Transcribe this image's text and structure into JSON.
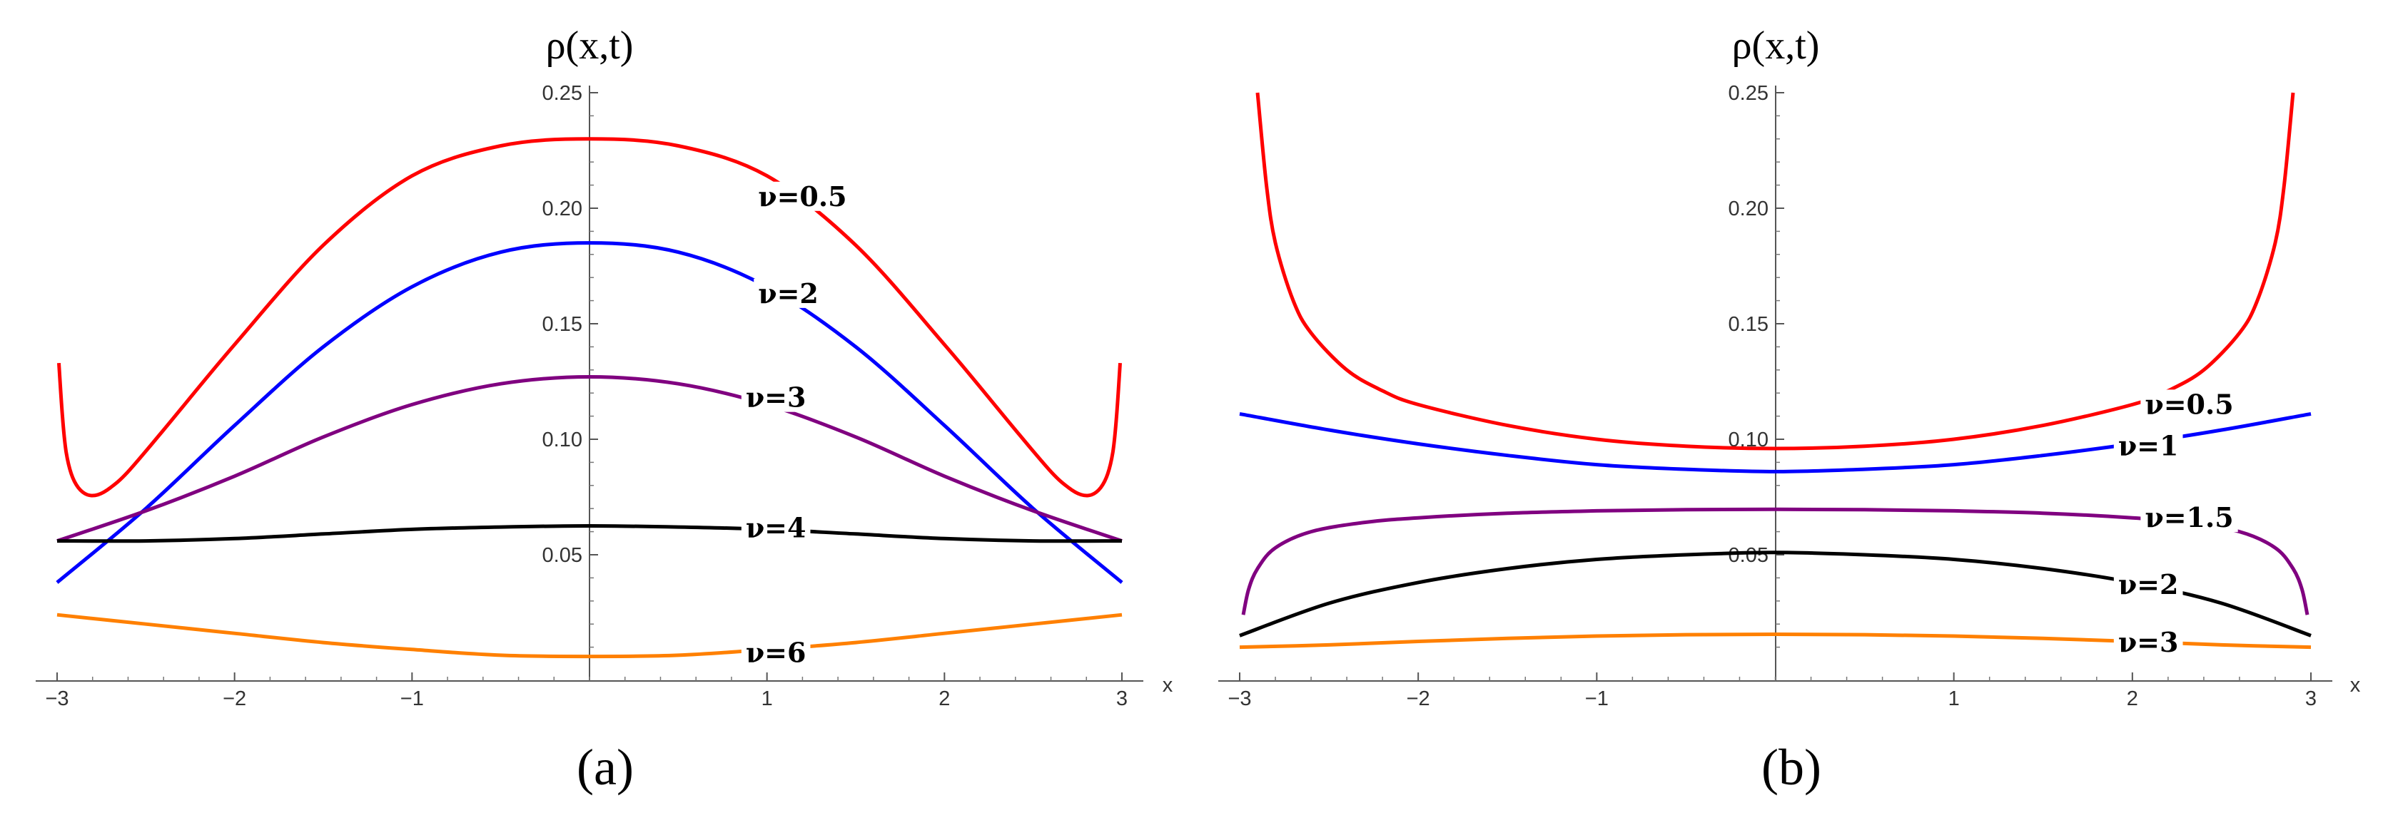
{
  "chart_data": [
    {
      "type": "line",
      "panel": "(a)",
      "ylabel": "ρ(x,t)",
      "xlabel": "x",
      "xlim": [
        -3,
        3
      ],
      "ylim": [
        0,
        0.25
      ],
      "xticks": [
        -3,
        -2,
        -1,
        1,
        2,
        3
      ],
      "xtick_labels": [
        "−3",
        "−2",
        "−1",
        "1",
        "2",
        "3"
      ],
      "yticks": [
        0.05,
        0.1,
        0.15,
        0.2,
        0.25
      ],
      "ytick_labels": [
        "0.05",
        "0.10",
        "0.15",
        "0.20",
        "0.25"
      ],
      "series": [
        {
          "name": "ν=0.5",
          "color": "#ff0000",
          "x": [
            -2.99,
            -2.97,
            -2.95,
            -2.92,
            -2.88,
            -2.83,
            -2.77,
            -2.7,
            -2.6,
            -2.4,
            -2.0,
            -1.5,
            -1.0,
            -0.5,
            0,
            0.5,
            1.0,
            1.5,
            2.0,
            2.4,
            2.6,
            2.7,
            2.77,
            2.83,
            2.88,
            2.92,
            2.95,
            2.97,
            2.99
          ],
          "y": [
            0.133,
            0.11,
            0.095,
            0.085,
            0.079,
            0.076,
            0.076,
            0.079,
            0.086,
            0.104,
            0.141,
            0.184,
            0.214,
            0.227,
            0.23,
            0.227,
            0.214,
            0.184,
            0.141,
            0.104,
            0.086,
            0.079,
            0.076,
            0.076,
            0.079,
            0.085,
            0.095,
            0.11,
            0.133
          ]
        },
        {
          "name": "ν=2",
          "color": "#0000ff",
          "x": [
            -3,
            -2.5,
            -2,
            -1.5,
            -1,
            -0.5,
            0,
            0.5,
            1,
            1.5,
            2,
            2.5,
            3
          ],
          "y": [
            0.038,
            0.07,
            0.106,
            0.14,
            0.166,
            0.181,
            0.185,
            0.181,
            0.166,
            0.14,
            0.106,
            0.07,
            0.038
          ]
        },
        {
          "name": "ν=3",
          "color": "#800080",
          "x": [
            -3,
            -2.5,
            -2,
            -1.5,
            -1,
            -0.5,
            0,
            0.5,
            1,
            1.5,
            2,
            2.5,
            3
          ],
          "y": [
            0.056,
            0.069,
            0.084,
            0.101,
            0.115,
            0.124,
            0.127,
            0.124,
            0.115,
            0.101,
            0.084,
            0.069,
            0.056
          ]
        },
        {
          "name": "ν=4",
          "color": "#000000",
          "x": [
            -3,
            -2.5,
            -2,
            -1.5,
            -1,
            -0.5,
            0,
            0.5,
            1,
            1.5,
            2,
            2.5,
            3
          ],
          "y": [
            0.056,
            0.056,
            0.057,
            0.059,
            0.061,
            0.062,
            0.0625,
            0.062,
            0.061,
            0.059,
            0.057,
            0.056,
            0.056
          ]
        },
        {
          "name": "ν=6",
          "color": "#ff8000",
          "x": [
            -3,
            -2.5,
            -2,
            -1.5,
            -1,
            -0.5,
            0,
            0.5,
            1,
            1.5,
            2,
            2.5,
            3
          ],
          "y": [
            0.024,
            0.02,
            0.016,
            0.012,
            0.009,
            0.0065,
            0.006,
            0.0065,
            0.009,
            0.012,
            0.016,
            0.02,
            0.024
          ]
        }
      ],
      "curve_labels": [
        {
          "text": "ν=0.5",
          "x": 0.95,
          "y": 0.205
        },
        {
          "text": "ν=2",
          "x": 0.95,
          "y": 0.163
        },
        {
          "text": "ν=3",
          "x": 0.88,
          "y": 0.118
        },
        {
          "text": "ν=4",
          "x": 0.88,
          "y": 0.0615
        },
        {
          "text": "ν=6",
          "x": 0.88,
          "y": 0.0075
        }
      ]
    },
    {
      "type": "line",
      "panel": "(b)",
      "ylabel": "ρ(x,t)",
      "xlabel": "x",
      "xlim": [
        -3,
        3
      ],
      "ylim": [
        0,
        0.25
      ],
      "xticks": [
        -3,
        -2,
        -1,
        1,
        2,
        3
      ],
      "xtick_labels": [
        "−3",
        "−2",
        "−1",
        "1",
        "2",
        "3"
      ],
      "yticks": [
        0.05,
        0.1,
        0.15,
        0.2,
        0.25
      ],
      "ytick_labels": [
        "0.05",
        "0.10",
        "0.15",
        "0.20",
        "0.25"
      ],
      "series": [
        {
          "name": "ν=0.5",
          "color": "#ff0000",
          "x": [
            -2.9,
            -2.85,
            -2.8,
            -2.7,
            -2.6,
            -2.4,
            -2.2,
            -2.0,
            -1.5,
            -1.0,
            -0.5,
            0,
            0.5,
            1.0,
            1.5,
            2.0,
            2.2,
            2.4,
            2.6,
            2.7,
            2.8,
            2.85,
            2.9
          ],
          "y": [
            0.25,
            0.21,
            0.185,
            0.16,
            0.146,
            0.13,
            0.121,
            0.115,
            0.106,
            0.1,
            0.097,
            0.096,
            0.097,
            0.1,
            0.106,
            0.115,
            0.121,
            0.13,
            0.146,
            0.16,
            0.185,
            0.21,
            0.25
          ]
        },
        {
          "name": "ν=1",
          "color": "#0000ff",
          "x": [
            -3,
            -2.5,
            -2,
            -1.5,
            -1,
            -0.5,
            0,
            0.5,
            1,
            1.5,
            2,
            2.5,
            3
          ],
          "y": [
            0.111,
            0.104,
            0.098,
            0.093,
            0.089,
            0.087,
            0.086,
            0.087,
            0.089,
            0.093,
            0.098,
            0.104,
            0.111
          ]
        },
        {
          "name": "ν=1.5",
          "color": "#800080",
          "x": [
            -2.98,
            -2.95,
            -2.9,
            -2.8,
            -2.6,
            -2.3,
            -2.0,
            -1.5,
            -1.0,
            -0.5,
            0,
            0.5,
            1.0,
            1.5,
            2.0,
            2.3,
            2.6,
            2.8,
            2.9,
            2.95,
            2.98
          ],
          "y": [
            0.024,
            0.035,
            0.044,
            0.053,
            0.06,
            0.064,
            0.066,
            0.068,
            0.069,
            0.0695,
            0.0697,
            0.0695,
            0.069,
            0.068,
            0.066,
            0.064,
            0.06,
            0.053,
            0.044,
            0.035,
            0.024
          ]
        },
        {
          "name": "ν=2",
          "color": "#000000",
          "x": [
            -3,
            -2.5,
            -2,
            -1.5,
            -1,
            -0.5,
            0,
            0.5,
            1,
            1.5,
            2,
            2.5,
            3
          ],
          "y": [
            0.015,
            0.029,
            0.038,
            0.044,
            0.048,
            0.05,
            0.051,
            0.05,
            0.048,
            0.044,
            0.038,
            0.029,
            0.015
          ]
        },
        {
          "name": "ν=3",
          "color": "#ff8000",
          "x": [
            -3,
            -2.5,
            -2,
            -1.5,
            -1,
            -0.5,
            0,
            0.5,
            1,
            1.5,
            2,
            2.5,
            3
          ],
          "y": [
            0.01,
            0.011,
            0.0125,
            0.0138,
            0.0148,
            0.0154,
            0.0156,
            0.0154,
            0.0148,
            0.0138,
            0.0125,
            0.011,
            0.01
          ]
        }
      ],
      "curve_labels": [
        {
          "text": "ν=0.5",
          "x": 2.07,
          "y": 0.115
        },
        {
          "text": "ν=1",
          "x": 1.92,
          "y": 0.097
        },
        {
          "text": "ν=1.5",
          "x": 2.07,
          "y": 0.066
        },
        {
          "text": "ν=2",
          "x": 1.92,
          "y": 0.037
        },
        {
          "text": "ν=3",
          "x": 1.92,
          "y": 0.012
        }
      ]
    }
  ]
}
